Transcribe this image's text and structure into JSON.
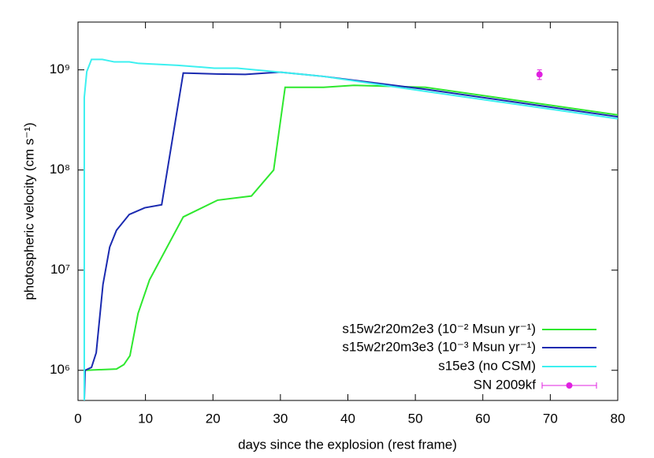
{
  "chart_data": {
    "type": "line",
    "xlabel": "days since the explosion (rest frame)",
    "ylabel": "photospheric velocity (cm s⁻¹)",
    "xlim": [
      0,
      80
    ],
    "xticks": [
      0,
      10,
      20,
      30,
      40,
      50,
      60,
      70,
      80
    ],
    "ylim": [
      500000,
      3000000000
    ],
    "yticks": [
      {
        "value": 1000000,
        "label": "10⁶"
      },
      {
        "value": 10000000,
        "label": "10⁷"
      },
      {
        "value": 100000000,
        "label": "10⁸"
      },
      {
        "value": 1000000000,
        "label": "10⁹"
      }
    ],
    "log_y": true,
    "legend": "lower right",
    "series": [
      {
        "name": "s15w2r20m2e3 (10⁻² Msun yr⁻¹)",
        "color": "#2ee82e",
        "x": [
          1.05,
          5.7,
          6.8,
          7.7,
          8.9,
          10.6,
          15.6,
          20.7,
          25.7,
          29,
          30.7,
          36.4,
          40.9,
          51.5,
          80
        ],
        "values": [
          1000000,
          1030000,
          1140000,
          1400000,
          3700000,
          8000000,
          34000000,
          50000000,
          55000000,
          100000000,
          670000000,
          670000000,
          700000000,
          670000000,
          355000000
        ]
      },
      {
        "name": "s15w2r20m3e3 (10⁻³ Msun yr⁻¹)",
        "color": "#1a2ab0",
        "x": [
          0.93,
          1.05,
          2,
          2.7,
          3.7,
          4.7,
          5.7,
          7.6,
          9.9,
          12.4,
          15.6,
          20.6,
          24.8,
          29.9,
          36.4,
          51.5,
          80
        ],
        "values": [
          490000,
          1000000,
          1070000,
          1500000,
          7200000,
          17000000,
          25000000,
          36000000,
          42000000,
          45000000,
          930000000,
          910000000,
          900000000,
          950000000,
          860000000,
          640000000,
          340000000
        ]
      },
      {
        "name": "s15e3 (no CSM)",
        "color": "#3cf0f0",
        "x": [
          0.93,
          0.93,
          1.3,
          2,
          3.6,
          5.4,
          7.6,
          9,
          14.8,
          20.2,
          23.6,
          29.9,
          36.4,
          51.5,
          80
        ],
        "values": [
          490000,
          530000000,
          960000000,
          1270000000,
          1270000000,
          1200000000,
          1200000000,
          1160000000,
          1110000000,
          1040000000,
          1040000000,
          950000000,
          860000000,
          610000000,
          325000000
        ]
      }
    ],
    "errorbar": {
      "name": "SN 2009kf",
      "color": "#e020e0",
      "x": [
        68.4
      ],
      "values": [
        900000000
      ],
      "errors": [
        100000000
      ]
    }
  }
}
